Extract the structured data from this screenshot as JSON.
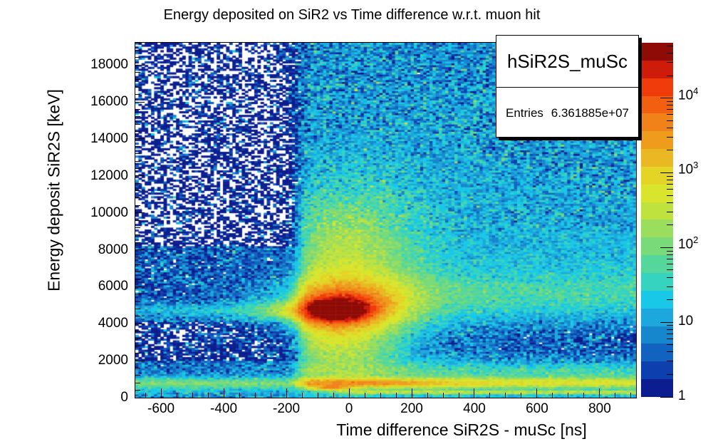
{
  "title": "Energy deposited on SiR2 vs Time difference w.r.t. muon hit",
  "stats_box": {
    "title": "hSiR2S_muSc",
    "entries_label": "Entries",
    "entries_value": "6.361885e+07"
  },
  "chart_data": {
    "type": "heatmap",
    "title": "Energy deposited on SiR2 vs Time difference w.r.t. muon hit",
    "xlabel": "Time difference SiR2S - muSc [ns]",
    "ylabel": "Energy deposit SiR2S [keV]",
    "xlim": [
      -682,
      916
    ],
    "ylim": [
      0,
      19200
    ],
    "zscale": "log",
    "zlim": [
      1,
      55000
    ],
    "zmax_log10": 4.74,
    "bin_size": {
      "t_ns": 10,
      "E_keV": 100
    },
    "x_major_ticks": [
      -600,
      -400,
      -200,
      0,
      200,
      400,
      600,
      800
    ],
    "x_minor_step": 50,
    "y_major_ticks": [
      0,
      2000,
      4000,
      6000,
      8000,
      10000,
      12000,
      14000,
      16000,
      18000
    ],
    "y_minor_step": 400,
    "colorbar_decades": [
      {
        "base": "1",
        "sup": ""
      },
      {
        "base": "10",
        "sup": ""
      },
      {
        "base": "10",
        "sup": "2"
      },
      {
        "base": "10",
        "sup": "3"
      },
      {
        "base": "10",
        "sup": "4"
      }
    ],
    "palette": [
      "#0b1d8f",
      "#0e3fae",
      "#1263c0",
      "#1787cd",
      "#1ca8dc",
      "#18c8e6",
      "#35d3c0",
      "#55d79b",
      "#78da78",
      "#9bdd5d",
      "#bfe23e",
      "#d9e52c",
      "#e3d426",
      "#e9b822",
      "#ef9b1c",
      "#f1821a",
      "#f2600f",
      "#f03b0a",
      "#ce1b0a",
      "#8f0b06"
    ],
    "features": {
      "transition_t": -163,
      "transition_width": 13,
      "left": {
        "high_E_min": 8200,
        "high_E_log": -0.1,
        "mid_E_log": 0.5,
        "gap_range": [
          1950,
          4050
        ],
        "gap_log": 0.12,
        "low_range": [
          1100,
          1950
        ],
        "low_log": 0.72,
        "band4700": {
          "E": 4730,
          "sigma": 300,
          "amp": 0.75
        },
        "band800": {
          "E": 790,
          "sigma": 240,
          "amp": 1.25,
          "base": 0.8
        },
        "bottom_log": 0.95
      },
      "right": {
        "base_log": 1.28,
        "high_E_ref": 5200,
        "high_E_drop": 0.38,
        "teal_band": {
          "E": 5700,
          "sigma": 800,
          "amp": 0.42
        },
        "green_band": {
          "E": 1500,
          "sigma": 300,
          "amp": 0.5
        },
        "shadow": {
          "E": 3000,
          "sigma": 900,
          "amp_near": 0.5,
          "amp_far": 0.85
        },
        "yellow_band": {
          "E": 820,
          "sigma": 230,
          "amp": 1.5
        },
        "orange_blob": {
          "t": 60,
          "sigma_t": 220,
          "E": 760,
          "sigma_E": 180,
          "amp": 0.62
        },
        "thin_band": {
          "E": 300,
          "sigma": 65,
          "amp": 1.3,
          "t_on": -80
        },
        "spot520": {
          "t": -55,
          "sigma_t": 45,
          "E": 520,
          "sigma_E": 90,
          "amp": 1.3
        }
      },
      "hotspot": [
        {
          "t": -50,
          "st": 70,
          "E": 4720,
          "sE": 360,
          "amp": 1.3
        },
        {
          "t": -40,
          "st": 130,
          "E": 4740,
          "sE": 700,
          "amp": 1.5
        },
        {
          "t": -20,
          "st": 190,
          "E": 4950,
          "sE": 1400,
          "amp": 1.1
        }
      ],
      "plume": {
        "t": 0,
        "st": 150,
        "E": 8200,
        "sE": 2300,
        "amp": 1.15
      },
      "neck": {
        "t": -30,
        "st": 140,
        "E": 2600,
        "sE": 1100,
        "amp": 0.85
      }
    }
  }
}
